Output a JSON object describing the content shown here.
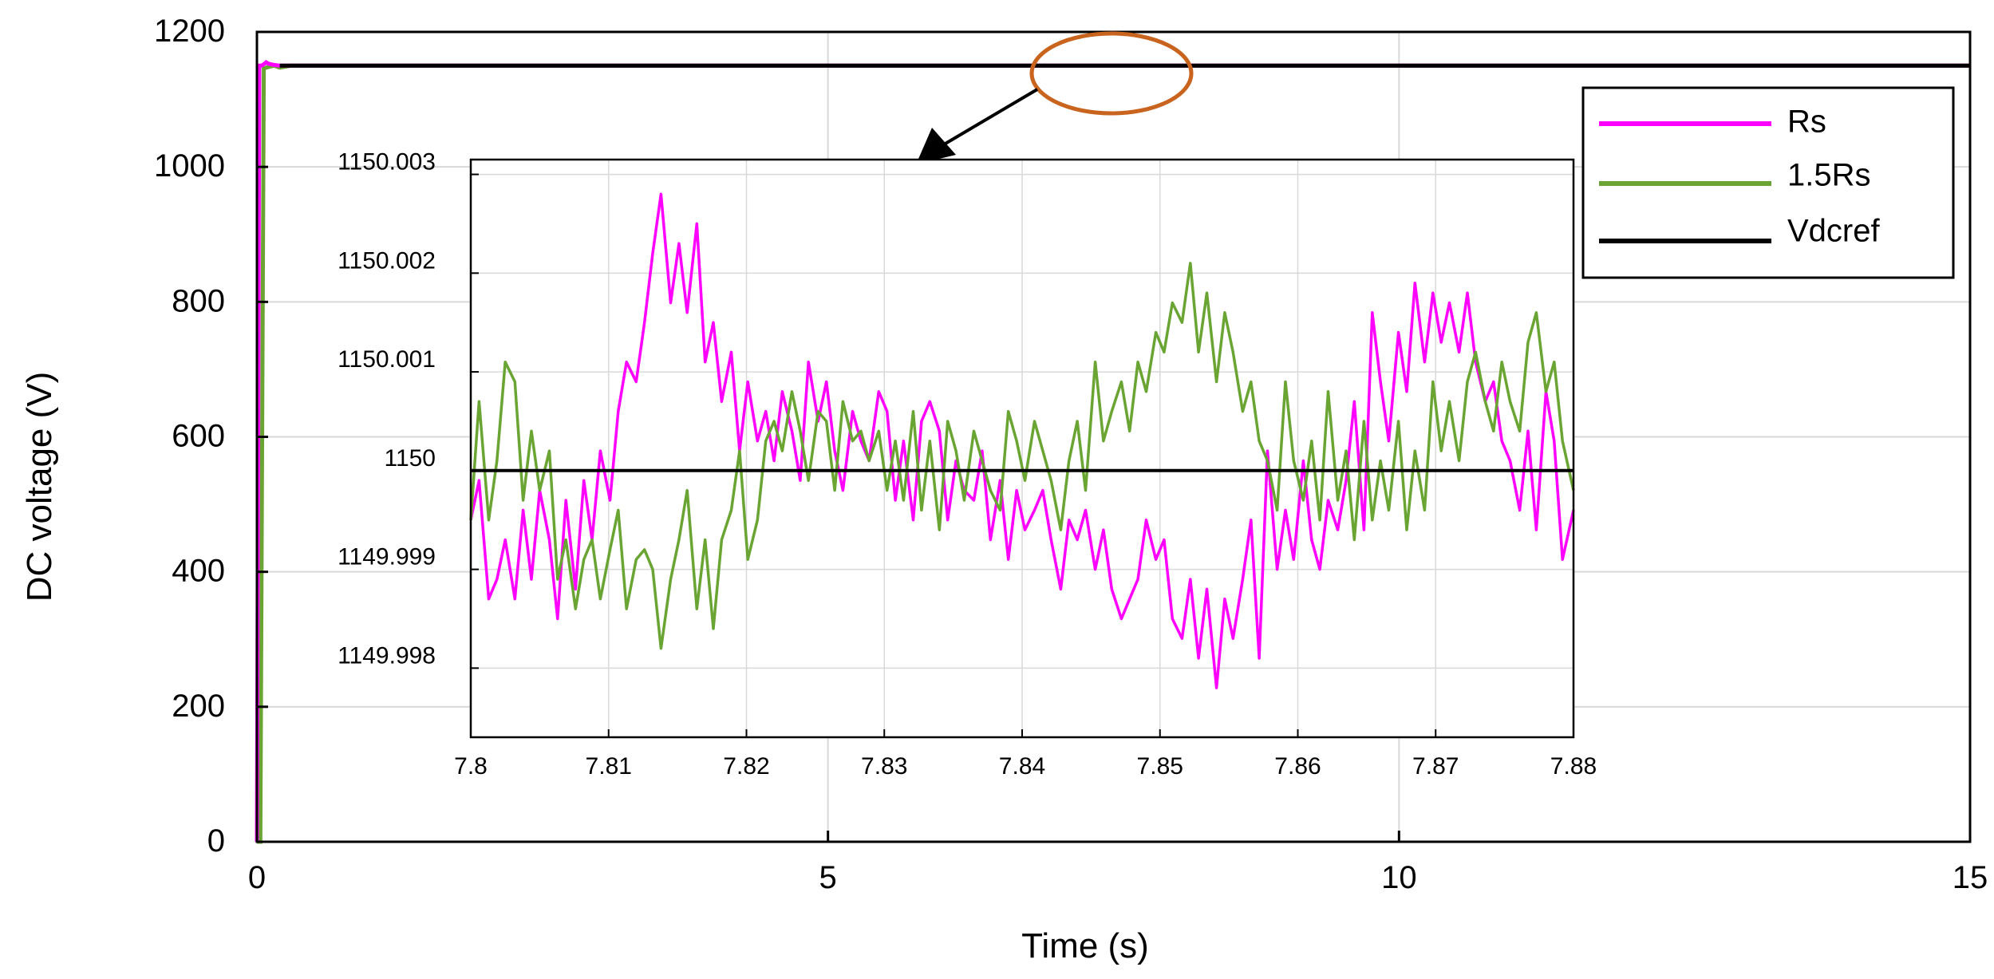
{
  "chart_data": [
    {
      "id": "main",
      "type": "line",
      "xlabel": "Time (s)",
      "ylabel": "DC voltage (V)",
      "xlim": [
        0,
        15
      ],
      "ylim": [
        0,
        1200
      ],
      "xticks": [
        "0",
        "5",
        "10",
        "15"
      ],
      "yticks": [
        "0",
        "200",
        "400",
        "600",
        "800",
        "1000",
        "1200"
      ],
      "grid": true,
      "legend_position": "top-right",
      "series": [
        {
          "name": "Rs",
          "color": "#ff00ff",
          "x": [
            0,
            0.02,
            0.04,
            0.06,
            0.08,
            0.1,
            0.15,
            0.2,
            0.3,
            15
          ],
          "y": [
            0,
            1150,
            1150,
            1152,
            1155,
            1153,
            1151,
            1150,
            1150,
            1150
          ]
        },
        {
          "name": "1.5Rs",
          "color": "#6aa534",
          "x": [
            0,
            0.03,
            0.06,
            0.1,
            0.15,
            0.2,
            0.3,
            15
          ],
          "y": [
            0,
            0,
            1146,
            1148,
            1150,
            1147,
            1150,
            1150
          ]
        },
        {
          "name": "Vdcref",
          "color": "#000000",
          "x": [
            0.2,
            15
          ],
          "y": [
            1150,
            1150
          ]
        }
      ]
    },
    {
      "id": "inset",
      "type": "line",
      "xlim": [
        7.8,
        7.88
      ],
      "ylim": [
        1149.9973,
        1150.00315
      ],
      "xticks": [
        "7.8",
        "7.81",
        "7.82",
        "7.83",
        "7.84",
        "7.85",
        "7.86",
        "7.87",
        "7.88"
      ],
      "yticks": [
        "1149.998",
        "1149.999",
        "1150",
        "1150.001",
        "1150.002",
        "1150.003"
      ],
      "grid": true,
      "series": [
        {
          "name": "Rs",
          "color": "#ff00ff",
          "x": [
            7.8,
            7.8006,
            7.8013,
            7.8019,
            7.8025,
            7.8032,
            7.8038,
            7.8044,
            7.805,
            7.8057,
            7.8063,
            7.8069,
            7.8076,
            7.8082,
            7.8088,
            7.8094,
            7.8101,
            7.8107,
            7.8113,
            7.812,
            7.8126,
            7.8132,
            7.8138,
            7.8145,
            7.8151,
            7.8157,
            7.8164,
            7.817,
            7.8176,
            7.8182,
            7.8189,
            7.8195,
            7.8201,
            7.8208,
            7.8214,
            7.822,
            7.8226,
            7.8233,
            7.8239,
            7.8245,
            7.8252,
            7.8258,
            7.8264,
            7.827,
            7.8277,
            7.8283,
            7.8289,
            7.8296,
            7.8302,
            7.8308,
            7.8314,
            7.8321,
            7.8327,
            7.8333,
            7.834,
            7.8346,
            7.8352,
            7.8358,
            7.8365,
            7.8371,
            7.8377,
            7.8384,
            7.839,
            7.8396,
            7.8402,
            7.8409,
            7.8415,
            7.8421,
            7.8428,
            7.8434,
            7.844,
            7.8446,
            7.8453,
            7.8459,
            7.8465,
            7.8472,
            7.8478,
            7.8484,
            7.849,
            7.8497,
            7.8503,
            7.8509,
            7.8516,
            7.8522,
            7.8528,
            7.8534,
            7.8541,
            7.8547,
            7.8553,
            7.856,
            7.8566,
            7.8572,
            7.8578,
            7.8585,
            7.8591,
            7.8597,
            7.8604,
            7.861,
            7.8616,
            7.8622,
            7.8629,
            7.8635,
            7.8641,
            7.8648,
            7.8654,
            7.866,
            7.8666,
            7.8673,
            7.8679,
            7.8685,
            7.8692,
            7.8698,
            7.8704,
            7.871,
            7.8717,
            7.8723,
            7.8729,
            7.8736,
            7.8742,
            7.8748,
            7.8754,
            7.8761,
            7.8767,
            7.8773,
            7.878,
            7.8786,
            7.8792,
            7.88
          ],
          "y": [
            1149.9995,
            1149.9999,
            1149.9987,
            1149.9989,
            1149.9993,
            1149.9987,
            1149.9996,
            1149.9989,
            1149.9998,
            1149.9993,
            1149.9985,
            1149.9997,
            1149.9988,
            1149.9999,
            1149.9993,
            1150.0002,
            1149.9997,
            1150.0006,
            1150.0011,
            1150.0009,
            1150.0015,
            1150.0022,
            1150.0028,
            1150.0017,
            1150.0023,
            1150.0016,
            1150.0025,
            1150.0011,
            1150.0015,
            1150.0007,
            1150.0012,
            1150.0002,
            1150.0009,
            1150.0003,
            1150.0006,
            1150.0001,
            1150.0008,
            1150.0004,
            1149.9999,
            1150.0011,
            1150.0005,
            1150.0009,
            1150.0002,
            1149.9998,
            1150.0006,
            1150.0003,
            1150.0001,
            1150.0008,
            1150.0006,
            1149.9997,
            1150.0003,
            1149.9995,
            1150.0005,
            1150.0007,
            1150.0004,
            1149.9995,
            1150.0001,
            1149.9998,
            1149.9997,
            1150.0002,
            1149.9993,
            1149.9999,
            1149.9991,
            1149.9998,
            1149.9994,
            1149.9996,
            1149.9998,
            1149.9993,
            1149.9988,
            1149.9995,
            1149.9993,
            1149.9996,
            1149.999,
            1149.9994,
            1149.9988,
            1149.9985,
            1149.9987,
            1149.9989,
            1149.9995,
            1149.9991,
            1149.9993,
            1149.9985,
            1149.9983,
            1149.9989,
            1149.9981,
            1149.9988,
            1149.9978,
            1149.9987,
            1149.9983,
            1149.9989,
            1149.9995,
            1149.9981,
            1150.0002,
            1149.999,
            1149.9996,
            1149.9991,
            1150.0001,
            1149.9993,
            1149.999,
            1149.9997,
            1149.9994,
            1149.9999,
            1150.0007,
            1149.9994,
            1150.0016,
            1150.0009,
            1150.0003,
            1150.0014,
            1150.0008,
            1150.0019,
            1150.0011,
            1150.0018,
            1150.0013,
            1150.0017,
            1150.0012,
            1150.0018,
            1150.0011,
            1150.0007,
            1150.0009,
            1150.0003,
            1150.0001,
            1149.9996,
            1150.0004,
            1149.9994,
            1150.0008,
            1150.0003,
            1149.9991,
            1149.9996
          ]
        },
        {
          "name": "1.5Rs",
          "color": "#6aa534",
          "x": [
            7.8,
            7.8006,
            7.8013,
            7.8019,
            7.8025,
            7.8032,
            7.8038,
            7.8044,
            7.805,
            7.8057,
            7.8063,
            7.8069,
            7.8076,
            7.8082,
            7.8088,
            7.8094,
            7.8101,
            7.8107,
            7.8113,
            7.812,
            7.8126,
            7.8132,
            7.8138,
            7.8145,
            7.8151,
            7.8157,
            7.8164,
            7.817,
            7.8176,
            7.8182,
            7.8189,
            7.8195,
            7.8201,
            7.8208,
            7.8214,
            7.822,
            7.8226,
            7.8233,
            7.8239,
            7.8245,
            7.8252,
            7.8258,
            7.8264,
            7.827,
            7.8277,
            7.8283,
            7.8289,
            7.8296,
            7.8302,
            7.8308,
            7.8314,
            7.8321,
            7.8327,
            7.8333,
            7.834,
            7.8346,
            7.8352,
            7.8358,
            7.8365,
            7.8371,
            7.8377,
            7.8384,
            7.839,
            7.8396,
            7.8402,
            7.8409,
            7.8415,
            7.8421,
            7.8428,
            7.8434,
            7.844,
            7.8446,
            7.8453,
            7.8459,
            7.8465,
            7.8472,
            7.8478,
            7.8484,
            7.849,
            7.8497,
            7.8503,
            7.8509,
            7.8516,
            7.8522,
            7.8528,
            7.8534,
            7.8541,
            7.8547,
            7.8553,
            7.856,
            7.8566,
            7.8572,
            7.8578,
            7.8585,
            7.8591,
            7.8597,
            7.8604,
            7.861,
            7.8616,
            7.8622,
            7.8629,
            7.8635,
            7.8641,
            7.8648,
            7.8654,
            7.866,
            7.8666,
            7.8673,
            7.8679,
            7.8685,
            7.8692,
            7.8698,
            7.8704,
            7.871,
            7.8717,
            7.8723,
            7.8729,
            7.8736,
            7.8742,
            7.8748,
            7.8754,
            7.8761,
            7.8767,
            7.8773,
            7.878,
            7.8786,
            7.8792,
            7.88
          ],
          "y": [
            1149.9995,
            1150.0007,
            1149.9995,
            1150.0001,
            1150.0011,
            1150.0009,
            1149.9997,
            1150.0004,
            1149.9998,
            1150.0002,
            1149.9989,
            1149.9993,
            1149.9986,
            1149.9991,
            1149.9993,
            1149.9987,
            1149.9992,
            1149.9996,
            1149.9986,
            1149.9991,
            1149.9992,
            1149.999,
            1149.9982,
            1149.9989,
            1149.9993,
            1149.9998,
            1149.9986,
            1149.9993,
            1149.9984,
            1149.9993,
            1149.9996,
            1150.0002,
            1149.9991,
            1149.9995,
            1150.0003,
            1150.0005,
            1150.0002,
            1150.0008,
            1150.0004,
            1149.9999,
            1150.0006,
            1150.0005,
            1149.9998,
            1150.0007,
            1150.0003,
            1150.0004,
            1150.0001,
            1150.0004,
            1149.9998,
            1150.0003,
            1149.9997,
            1150.0006,
            1149.9996,
            1150.0003,
            1149.9994,
            1150.0005,
            1150.0002,
            1149.9997,
            1150.0004,
            1150.0001,
            1149.9998,
            1149.9996,
            1150.0006,
            1150.0003,
            1149.9999,
            1150.0005,
            1150.0002,
            1149.9999,
            1149.9994,
            1150.0001,
            1150.0005,
            1149.9998,
            1150.0011,
            1150.0003,
            1150.0006,
            1150.0009,
            1150.0004,
            1150.0011,
            1150.0008,
            1150.0014,
            1150.0012,
            1150.0017,
            1150.0015,
            1150.0021,
            1150.0012,
            1150.0018,
            1150.0009,
            1150.0016,
            1150.0012,
            1150.0006,
            1150.0009,
            1150.0003,
            1150.0001,
            1149.9996,
            1150.0009,
            1150.0001,
            1149.9997,
            1150.0003,
            1149.9995,
            1150.0008,
            1149.9997,
            1150.0002,
            1149.9993,
            1150.0005,
            1149.9995,
            1150.0001,
            1149.9996,
            1150.0005,
            1149.9994,
            1150.0002,
            1149.9996,
            1150.0009,
            1150.0002,
            1150.0007,
            1150.0001,
            1150.0009,
            1150.0012,
            1150.0007,
            1150.0004,
            1150.0011,
            1150.0007,
            1150.0004,
            1150.0013,
            1150.0016,
            1150.0008,
            1150.0011,
            1150.0003,
            1149.9998
          ]
        },
        {
          "name": "Vdcref",
          "color": "#000000",
          "x": [
            7.8,
            7.88
          ],
          "y": [
            1150,
            1150
          ]
        }
      ]
    }
  ],
  "legend": {
    "items": [
      {
        "label": "Rs",
        "color": "#ff00ff"
      },
      {
        "label": "1.5Rs",
        "color": "#6aa534"
      },
      {
        "label": "Vdcref",
        "color": "#000000"
      }
    ]
  },
  "annotation": {
    "ellipse_color": "#c8641e",
    "arrow_color": "#000000"
  },
  "colors": {
    "grid": "#d9d9d9",
    "axis": "#000000"
  }
}
